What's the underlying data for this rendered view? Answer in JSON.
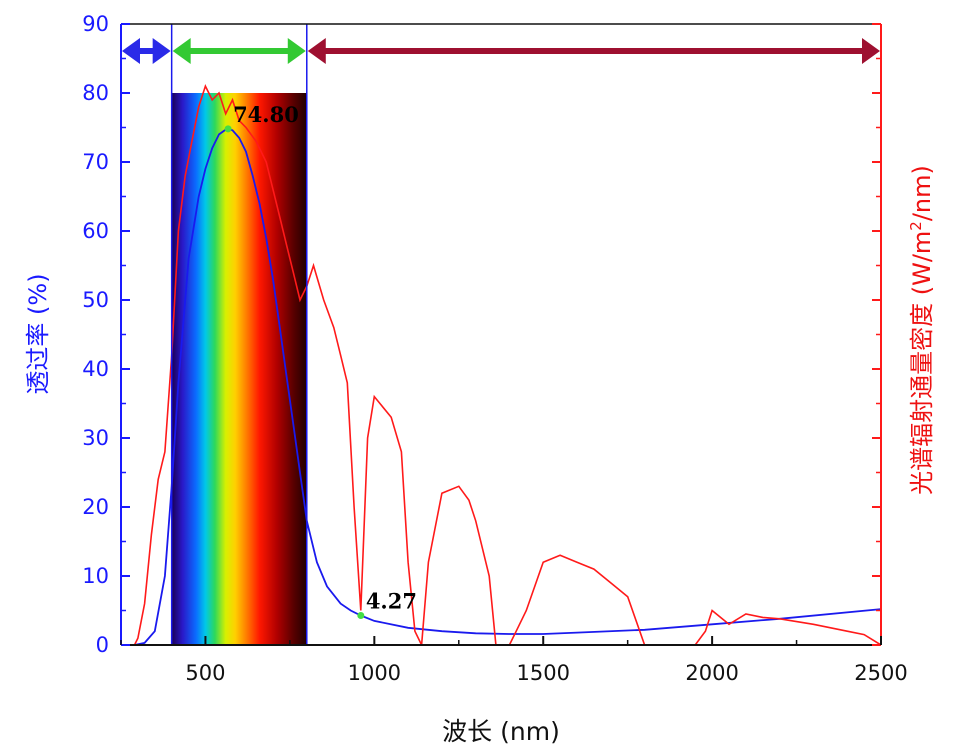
{
  "chart_data": {
    "type": "line",
    "xlabel": "波长 (nm)",
    "ylabel_left": "透过率 (%)",
    "ylabel_right_prefix": "光谱辐射通量密度 (W/m",
    "ylabel_right_sup": "2",
    "ylabel_right_suffix": "/nm)",
    "xlim": [
      250,
      2500
    ],
    "ylim_left": [
      0,
      90
    ],
    "x_ticks": [
      "500",
      "1000",
      "1500",
      "2000",
      "2500"
    ],
    "y_ticks_left": [
      "0",
      "10",
      "20",
      "30",
      "40",
      "50",
      "60",
      "70",
      "80",
      "90"
    ],
    "region_boundaries_nm": [
      400,
      800
    ],
    "regions": [
      {
        "from": 250,
        "to": 400,
        "color": "#2a2ae8"
      },
      {
        "from": 400,
        "to": 800,
        "color": "#33c933"
      },
      {
        "from": 800,
        "to": 2500,
        "color": "#9e1030"
      }
    ],
    "series": [
      {
        "axis": "left",
        "color": "#1a1aee",
        "x": [
          290,
          320,
          350,
          380,
          400,
          420,
          450,
          480,
          500,
          520,
          540,
          560,
          567,
          580,
          600,
          620,
          640,
          660,
          680,
          700,
          720,
          740,
          760,
          780,
          800,
          830,
          860,
          900,
          930,
          960,
          1000,
          1100,
          1200,
          1300,
          1400,
          1500,
          1600,
          1800,
          2000,
          2200,
          2500
        ],
        "y": [
          0,
          0.3,
          2,
          10,
          23,
          38,
          56,
          65,
          69,
          72,
          74,
          74.7,
          74.8,
          74.6,
          73.5,
          71.5,
          68,
          64,
          59,
          53,
          46,
          39,
          32,
          25,
          18,
          12,
          8.5,
          6,
          5,
          4.27,
          3.5,
          2.5,
          2,
          1.7,
          1.6,
          1.6,
          1.8,
          2.2,
          3,
          3.8,
          5.2
        ]
      },
      {
        "axis": "right",
        "color": "#ff1a1a",
        "x": [
          290,
          300,
          320,
          340,
          360,
          380,
          400,
          420,
          440,
          460,
          480,
          500,
          520,
          540,
          560,
          580,
          600,
          620,
          650,
          680,
          700,
          720,
          740,
          760,
          780,
          800,
          820,
          850,
          880,
          900,
          920,
          940,
          960,
          980,
          1000,
          1050,
          1080,
          1100,
          1120,
          1140,
          1160,
          1200,
          1250,
          1280,
          1300,
          1340,
          1360,
          1400,
          1420,
          1450,
          1500,
          1550,
          1600,
          1650,
          1700,
          1750,
          1800,
          1850,
          1900,
          1950,
          1980,
          2000,
          2050,
          2100,
          2150,
          2200,
          2300,
          2400,
          2450,
          2500
        ],
        "y": [
          0,
          1,
          6,
          16,
          24,
          28,
          42,
          60,
          68,
          73,
          78,
          81,
          79,
          80,
          77,
          79,
          76,
          75,
          73,
          70,
          66,
          62,
          58,
          54,
          50,
          52,
          55,
          50,
          46,
          42,
          38,
          20,
          5,
          30,
          36,
          33,
          28,
          12,
          2,
          0,
          12,
          22,
          23,
          21,
          18,
          10,
          0,
          0,
          2,
          5,
          12,
          13,
          12,
          11,
          9,
          7,
          0,
          0,
          0,
          0,
          2,
          5,
          3,
          4.5,
          4,
          3.8,
          3,
          2,
          1.5,
          0
        ]
      }
    ],
    "annotations": [
      {
        "x": 567,
        "y": 74.8,
        "label": "74.80"
      },
      {
        "x": 960,
        "y": 4.27,
        "label": "4.27"
      }
    ]
  }
}
